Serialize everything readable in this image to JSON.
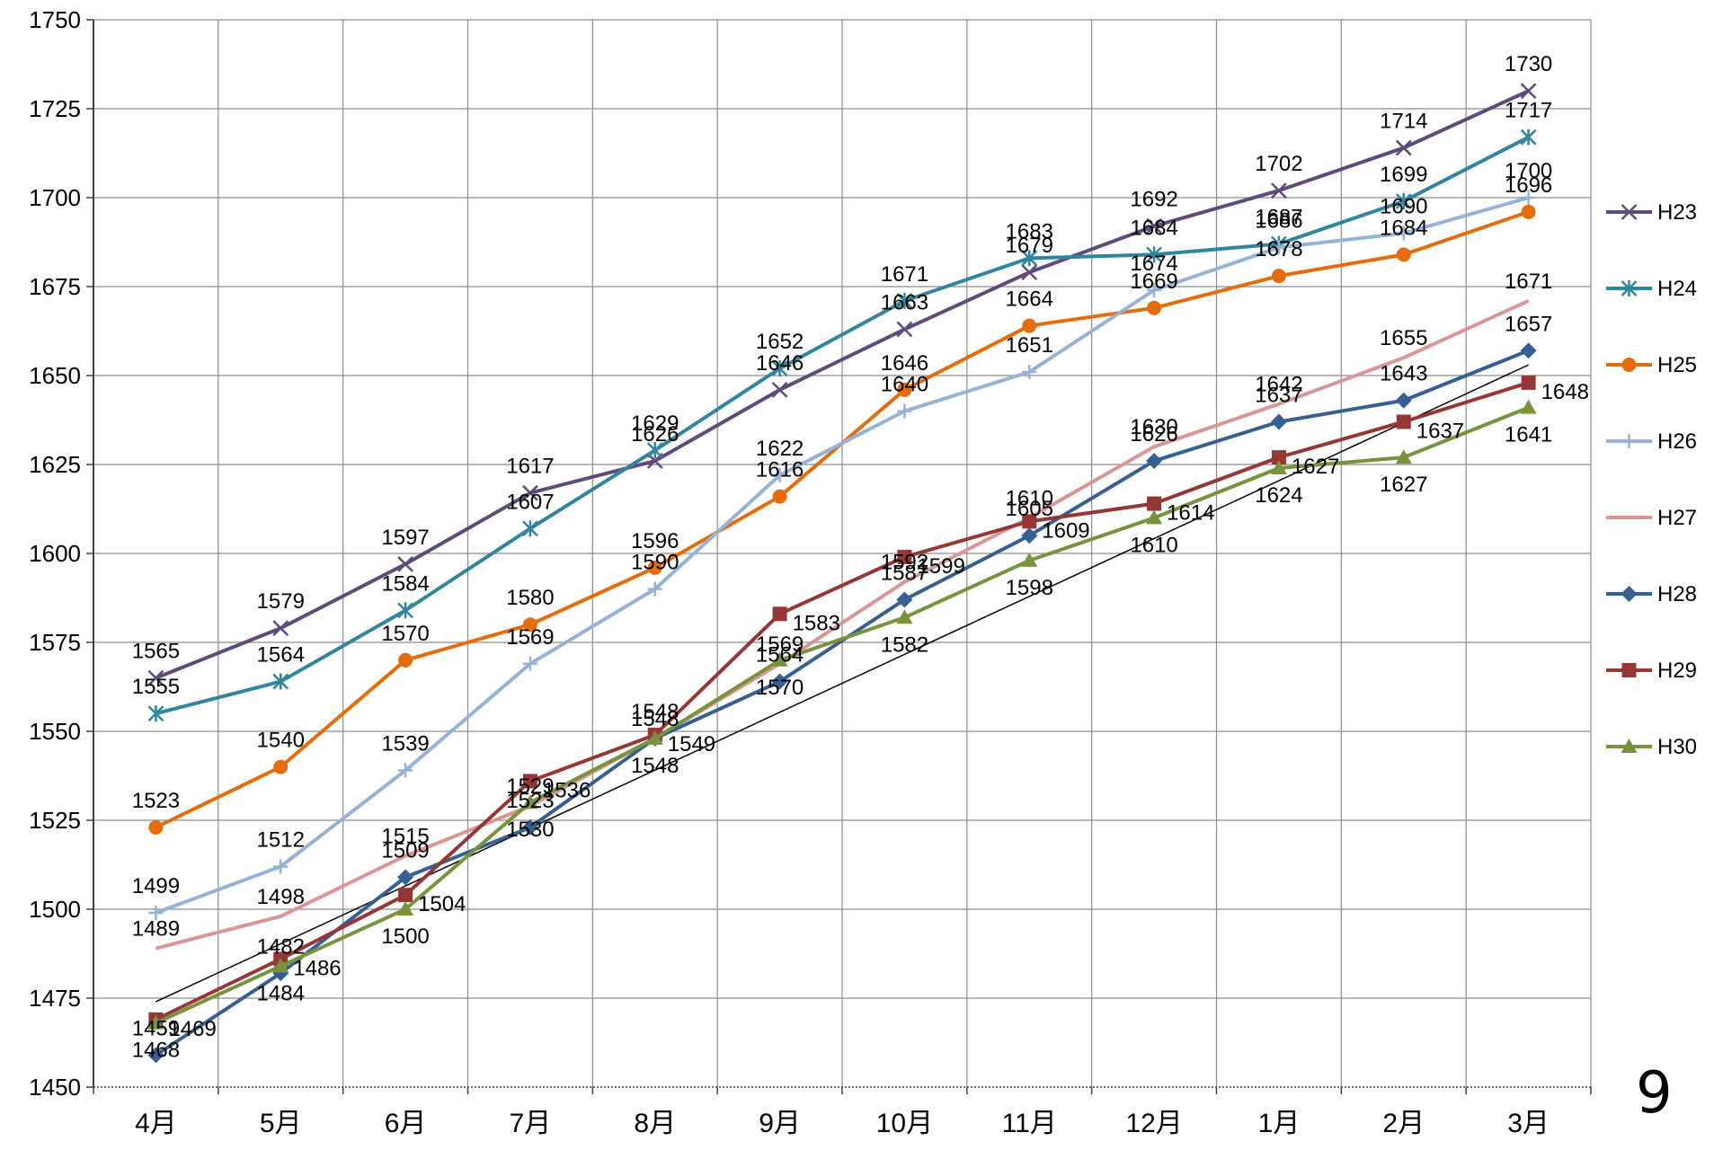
{
  "page_number": "9",
  "chart_data": {
    "type": "line",
    "title": "",
    "xlabel": "",
    "ylabel": "",
    "ylim": [
      1450,
      1750
    ],
    "yticks": [
      1450,
      1475,
      1500,
      1525,
      1550,
      1575,
      1600,
      1625,
      1650,
      1675,
      1700,
      1725,
      1750
    ],
    "grid": "on",
    "legend_position": "right",
    "categories": [
      "4月",
      "5月",
      "6月",
      "7月",
      "8月",
      "9月",
      "10月",
      "11月",
      "12月",
      "1月",
      "2月",
      "3月"
    ],
    "series": [
      {
        "name": "H23",
        "color": "#604a7b",
        "marker": "x",
        "values": [
          1565,
          1579,
          1597,
          1617,
          1626,
          1646,
          1663,
          1679,
          1692,
          1702,
          1714,
          1730
        ]
      },
      {
        "name": "H24",
        "color": "#31859c",
        "marker": "asterisk",
        "values": [
          1555,
          1564,
          1584,
          1607,
          1629,
          1652,
          1671,
          1683,
          1684,
          1687,
          1699,
          1717
        ]
      },
      {
        "name": "H25",
        "color": "#e46c0a",
        "marker": "circle",
        "values": [
          1523,
          1540,
          1570,
          1580,
          1596,
          1616,
          1646,
          1664,
          1669,
          1678,
          1684,
          1696
        ]
      },
      {
        "name": "H26",
        "color": "#95b3d7",
        "marker": "plus",
        "values": [
          1499,
          1512,
          1539,
          1569,
          1590,
          1622,
          1640,
          1651,
          1674,
          1686,
          1690,
          1700
        ]
      },
      {
        "name": "H27",
        "color": "#d99694",
        "marker": "none",
        "values": [
          1489,
          1498,
          1515,
          1529,
          1548,
          1569,
          1592,
          1610,
          1630,
          1642,
          1655,
          1671
        ]
      },
      {
        "name": "H28",
        "color": "#366092",
        "marker": "diamond",
        "values": [
          1459,
          1482,
          1509,
          1523,
          1548,
          1564,
          1587,
          1605,
          1626,
          1637,
          1643,
          1657
        ]
      },
      {
        "name": "H29",
        "color": "#953735",
        "marker": "square",
        "values": [
          1469,
          1486,
          1504,
          1536,
          1549,
          1583,
          1599,
          1609,
          1614,
          1627,
          1637,
          1648
        ]
      },
      {
        "name": "H30",
        "color": "#77933c",
        "marker": "triangle",
        "values": [
          1468,
          1484,
          1500,
          1530,
          1548,
          1570,
          1582,
          1598,
          1610,
          1624,
          1627,
          1641
        ]
      }
    ],
    "trendline": {
      "color": "#000000",
      "from": [
        1,
        1474
      ],
      "to": [
        12,
        1653
      ]
    }
  }
}
